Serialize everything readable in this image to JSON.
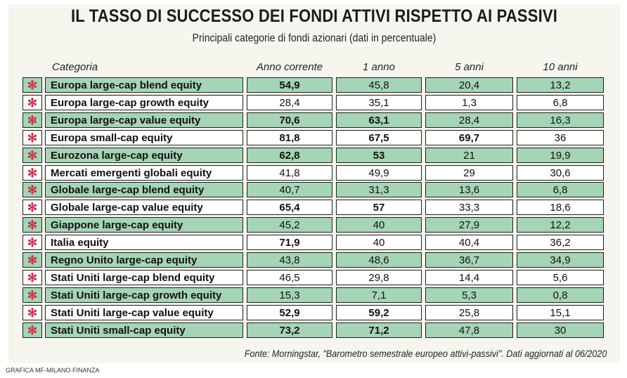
{
  "chart_data": {
    "type": "table",
    "title": "IL TASSO DI SUCCESSO DEI FONDI ATTIVI RISPETTO AI PASSIVI",
    "subtitle": "Principali categorie di fondi azionari (dati in percentuale)",
    "columns": [
      "Categoria",
      "Anno corrente",
      "1 anno",
      "5 anni",
      "10 anni"
    ],
    "row_icon": "asterisk-icon",
    "row_colors": {
      "shaded": "#a6d4b6",
      "plain": "#ffffff",
      "icon": "#c0394b"
    },
    "rows": [
      {
        "category": "Europa large-cap blend equity",
        "values": [
          "54,9",
          "45,8",
          "20,4",
          "13,2"
        ],
        "bold": [
          true,
          false,
          false,
          false
        ]
      },
      {
        "category": "Europa large-cap growth equity",
        "values": [
          "28,4",
          "35,1",
          "1,3",
          "6,8"
        ],
        "bold": [
          false,
          false,
          false,
          false
        ]
      },
      {
        "category": "Europa large-cap value equity",
        "values": [
          "70,6",
          "63,1",
          "28,4",
          "16,3"
        ],
        "bold": [
          true,
          true,
          false,
          false
        ]
      },
      {
        "category": "Europa small-cap equity",
        "values": [
          "81,8",
          "67,5",
          "69,7",
          "36"
        ],
        "bold": [
          true,
          true,
          true,
          false
        ]
      },
      {
        "category": "Eurozona large-cap equity",
        "values": [
          "62,8",
          "53",
          "21",
          "19,9"
        ],
        "bold": [
          true,
          true,
          false,
          false
        ]
      },
      {
        "category": "Mercati emergenti globali equity",
        "values": [
          "41,8",
          "49,9",
          "29",
          "30,6"
        ],
        "bold": [
          false,
          false,
          false,
          false
        ]
      },
      {
        "category": "Globale large-cap blend equity",
        "values": [
          "40,7",
          "31,3",
          "13,6",
          "6,8"
        ],
        "bold": [
          false,
          false,
          false,
          false
        ]
      },
      {
        "category": "Globale large-cap value equity",
        "values": [
          "65,4",
          "57",
          "33,3",
          "18,6"
        ],
        "bold": [
          true,
          true,
          false,
          false
        ]
      },
      {
        "category": "Giappone large-cap equity",
        "values": [
          "45,2",
          "40",
          "27,9",
          "12,2"
        ],
        "bold": [
          false,
          false,
          false,
          false
        ]
      },
      {
        "category": "Italia equity",
        "values": [
          "71,9",
          "40",
          "40,4",
          "36,2"
        ],
        "bold": [
          true,
          false,
          false,
          false
        ]
      },
      {
        "category": "Regno Unito large-cap equity",
        "values": [
          "43,8",
          "48,6",
          "36,7",
          "34,9"
        ],
        "bold": [
          false,
          false,
          false,
          false
        ]
      },
      {
        "category": "Stati Uniti large-cap blend equity",
        "values": [
          "46,5",
          "29,8",
          "14,4",
          "5,6"
        ],
        "bold": [
          false,
          false,
          false,
          false
        ]
      },
      {
        "category": "Stati Uniti large-cap growth equity",
        "values": [
          "15,3",
          "7,1",
          "5,3",
          "0,8"
        ],
        "bold": [
          false,
          false,
          false,
          false
        ]
      },
      {
        "category": "Stati Uniti large-cap value equity",
        "values": [
          "52,9",
          "59,2",
          "25,8",
          "15,1"
        ],
        "bold": [
          true,
          true,
          false,
          false
        ]
      },
      {
        "category": "Stati Uniti small-cap equity",
        "values": [
          "73,2",
          "71,2",
          "47,8",
          "30"
        ],
        "bold": [
          true,
          true,
          false,
          false
        ]
      }
    ],
    "source": "Fonte: Morningstar, \"Barometro semestrale europeo attivi-passivi\". Dati aggiornati al  06/2020",
    "credit": "GRAFICA MF-MILANO FINANZA"
  }
}
